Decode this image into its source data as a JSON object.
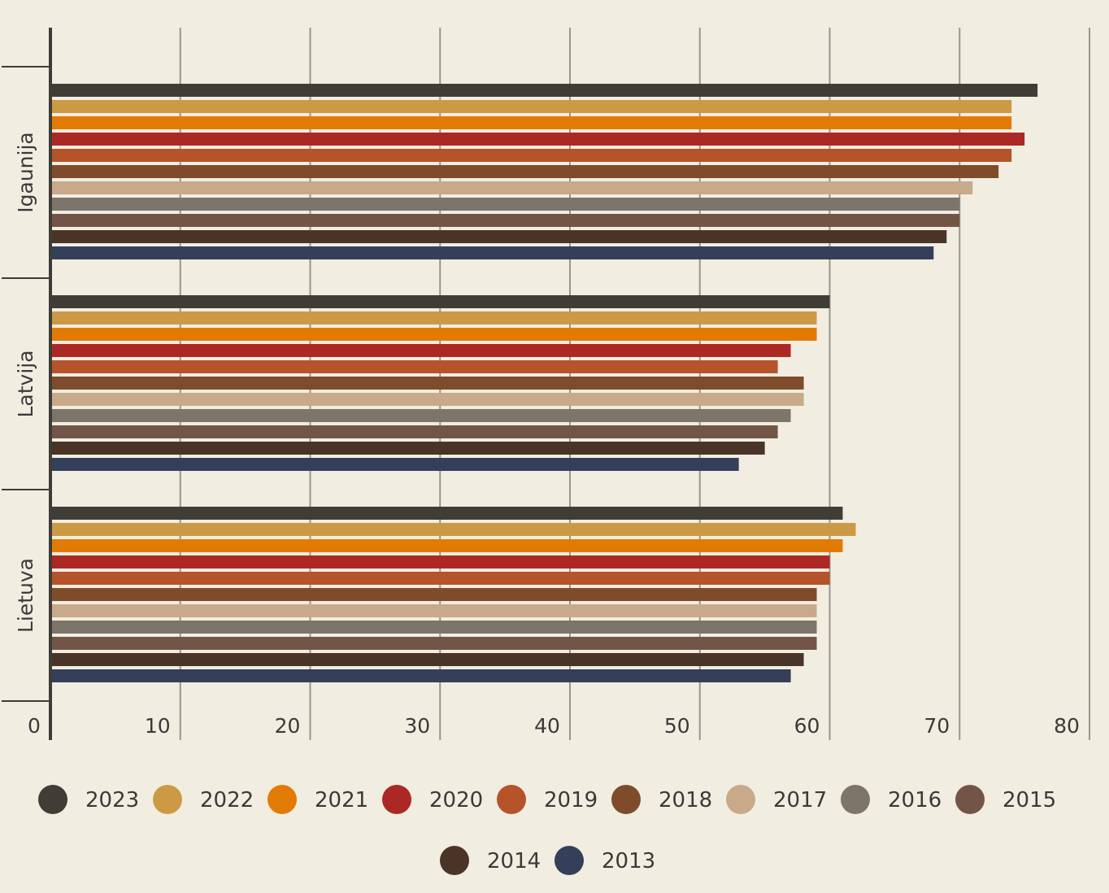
{
  "chart_data": {
    "type": "bar",
    "orientation": "horizontal",
    "title": "",
    "xlabel": "",
    "ylabel": "",
    "xlim": [
      0,
      80
    ],
    "xticks": [
      0,
      10,
      20,
      30,
      40,
      50,
      60,
      70,
      80
    ],
    "grid": "vertical",
    "legend_position": "bottom",
    "categories": [
      "Igaunija",
      "Latvija",
      "Lietuva"
    ],
    "series": [
      {
        "name": "2023",
        "color": "#403d37",
        "values": [
          76.0,
          60.0,
          61.0
        ]
      },
      {
        "name": "2022",
        "color": "#cc9a45",
        "values": [
          74.0,
          59.0,
          62.0
        ]
      },
      {
        "name": "2021",
        "color": "#e27b05",
        "values": [
          74.0,
          59.0,
          61.0
        ]
      },
      {
        "name": "2020",
        "color": "#ac2824",
        "values": [
          75.0,
          57.0,
          60.0
        ]
      },
      {
        "name": "2019",
        "color": "#b5532a",
        "values": [
          74.0,
          56.0,
          60.0
        ]
      },
      {
        "name": "2018",
        "color": "#7e4c2a",
        "values": [
          73.0,
          58.0,
          59.0
        ]
      },
      {
        "name": "2017",
        "color": "#c8a98a",
        "values": [
          71.0,
          58.0,
          59.0
        ]
      },
      {
        "name": "2016",
        "color": "#7d746a",
        "values": [
          70.0,
          57.0,
          59.0
        ]
      },
      {
        "name": "2015",
        "color": "#735548",
        "values": [
          70.0,
          56.0,
          59.0
        ]
      },
      {
        "name": "2014",
        "color": "#4a3428",
        "values": [
          69.0,
          55.0,
          58.0
        ]
      },
      {
        "name": "2013",
        "color": "#343f5a",
        "values": [
          68.0,
          53.0,
          57.0
        ]
      }
    ]
  },
  "colors": {
    "background": "#f1ede1",
    "axis": "#3f3c37",
    "grid": "#9a958a"
  }
}
